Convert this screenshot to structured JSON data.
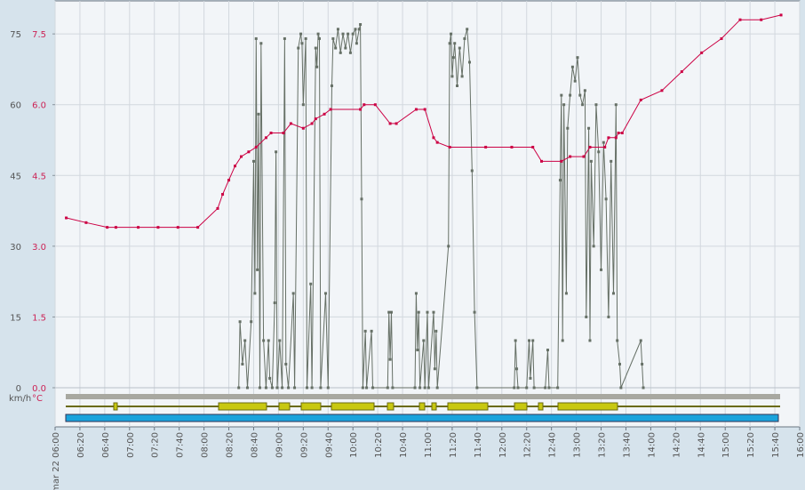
{
  "chart_data": {
    "type": "line",
    "y_label": "km/h",
    "y2_label": "°C",
    "xlim": [
      "06:00",
      "16:00"
    ],
    "xticks": [
      {
        "value": "06:00",
        "label": "mar 22 06:00"
      },
      "06:20",
      "06:40",
      "07:00",
      "07:20",
      "07:40",
      "08:00",
      "08:20",
      "08:40",
      "09:00",
      "09:20",
      "09:40",
      "10:00",
      "10:20",
      "10:40",
      "11:00",
      "11:20",
      "11:40",
      "12:00",
      "12:20",
      "12:40",
      "13:00",
      "13:20",
      "13:40",
      "14:00",
      "14:20",
      "14:40",
      "15:00",
      "15:20",
      "15:40",
      "16:00"
    ],
    "ylim": [
      0,
      82
    ],
    "yticks": [
      0,
      15,
      30,
      45,
      60,
      75
    ],
    "y2lim": [
      0,
      8.2
    ],
    "y2ticks": [
      {
        "value": 0,
        "label": "0.0"
      },
      1.5,
      {
        "value": 3,
        "label": "3.0"
      },
      4.5,
      {
        "value": 6,
        "label": "6.0"
      },
      7.5
    ],
    "grid": true,
    "series": [
      {
        "name": "km/h",
        "color": "#667066",
        "x": [
          "08:28",
          "08:29",
          "08:31",
          "08:33",
          "08:35",
          "08:38",
          "08:40",
          "08:41",
          "08:42",
          "08:43",
          "08:44",
          "08:45",
          "08:46",
          "08:48",
          "08:50",
          "08:52",
          "08:53",
          "08:55",
          "08:57",
          "08:58",
          "08:59",
          "09:01",
          "09:03",
          "09:05",
          "09:06",
          "09:08",
          "09:12",
          "09:13",
          "09:16",
          "09:18",
          "09:19",
          "09:20",
          "09:22",
          "09:23",
          "09:26",
          "09:27",
          "09:30",
          "09:31",
          "09:32",
          "09:33",
          "09:34",
          "09:38",
          "09:40",
          "09:43",
          "09:44",
          "09:46",
          "09:48",
          "09:50",
          "09:52",
          "09:54",
          "09:56",
          "09:58",
          "10:00",
          "10:02",
          "10:03",
          "10:05",
          "10:06",
          "10:07",
          "10:08",
          "10:10",
          "10:11",
          "10:15",
          "10:16",
          "10:28",
          "10:29",
          "10:30",
          "10:31",
          "10:32",
          "10:50",
          "10:51",
          "10:52",
          "10:53",
          "10:54",
          "10:57",
          "10:58",
          "11:00",
          "11:01",
          "11:05",
          "11:06",
          "11:07",
          "11:08",
          "11:17",
          "11:18",
          "11:19",
          "11:20",
          "11:21",
          "11:22",
          "11:24",
          "11:26",
          "11:28",
          "11:30",
          "11:32",
          "11:34",
          "11:36",
          "11:38",
          "11:40",
          "12:10",
          "12:11",
          "12:12",
          "12:13",
          "12:20",
          "12:22",
          "12:23",
          "12:25",
          "12:26",
          "12:35",
          "12:37",
          "12:38",
          "12:45",
          "12:47",
          "12:48",
          "12:49",
          "12:50",
          "12:52",
          "12:53",
          "12:55",
          "12:57",
          "12:59",
          "13:01",
          "13:03",
          "13:05",
          "13:07",
          "13:08",
          "13:10",
          "13:11",
          "13:12",
          "13:14",
          "13:16",
          "13:18",
          "13:20",
          "13:22",
          "13:24",
          "13:26",
          "13:28",
          "13:30",
          "13:32",
          "13:33",
          "13:35",
          "13:36",
          "13:52",
          "13:53",
          "13:54"
        ],
        "values": [
          0,
          14,
          5,
          10,
          0,
          14,
          48,
          20,
          74,
          25,
          58,
          0,
          73,
          10,
          0,
          10,
          2,
          0,
          18,
          50,
          0,
          10,
          0,
          74,
          5,
          0,
          20,
          0,
          72,
          75,
          73,
          60,
          74,
          0,
          22,
          0,
          72,
          68,
          75,
          74,
          0,
          20,
          0,
          64,
          74,
          72,
          76,
          71,
          75,
          72,
          75,
          71,
          75,
          76,
          73,
          76,
          77,
          40,
          0,
          12,
          0,
          12,
          0,
          0,
          16,
          6,
          16,
          0,
          0,
          20,
          8,
          16,
          0,
          10,
          0,
          16,
          0,
          16,
          4,
          12,
          0,
          30,
          73,
          75,
          66,
          70,
          73,
          64,
          72,
          66,
          74,
          76,
          69,
          46,
          16,
          0,
          0,
          10,
          4,
          0,
          0,
          10,
          2,
          10,
          0,
          0,
          8,
          0,
          0,
          44,
          62,
          10,
          60,
          20,
          55,
          62,
          68,
          65,
          70,
          62,
          60,
          63,
          15,
          55,
          10,
          48,
          30,
          60,
          50,
          25,
          52,
          40,
          15,
          48,
          20,
          60,
          10,
          5,
          0,
          10,
          5,
          0
        ]
      },
      {
        "name": "°C",
        "color": "#cc0044",
        "axis": "y2",
        "x": [
          "06:09",
          "06:25",
          "06:42",
          "06:49",
          "07:07",
          "07:23",
          "07:39",
          "07:55",
          "08:11",
          "08:15",
          "08:20",
          "08:25",
          "08:30",
          "08:36",
          "08:42",
          "08:50",
          "08:54",
          "09:04",
          "09:10",
          "09:20",
          "09:27",
          "09:30",
          "09:37",
          "09:42",
          "10:06",
          "10:09",
          "10:18",
          "10:30",
          "10:35",
          "10:51",
          "10:58",
          "11:05",
          "11:08",
          "11:18",
          "11:47",
          "12:08",
          "12:25",
          "12:32",
          "12:48",
          "12:55",
          "13:06",
          "13:11",
          "13:23",
          "13:26",
          "13:32",
          "13:34",
          "13:37",
          "13:52",
          "14:09",
          "14:25",
          "14:41",
          "14:57",
          "15:12",
          "15:29",
          "15:45"
        ],
        "values": [
          3.6,
          3.5,
          3.4,
          3.4,
          3.4,
          3.4,
          3.4,
          3.4,
          3.8,
          4.1,
          4.4,
          4.7,
          4.9,
          5.0,
          5.1,
          5.3,
          5.4,
          5.4,
          5.6,
          5.5,
          5.6,
          5.7,
          5.8,
          5.9,
          5.9,
          6.0,
          6.0,
          5.6,
          5.6,
          5.9,
          5.9,
          5.3,
          5.2,
          5.1,
          5.1,
          5.1,
          5.1,
          4.8,
          4.8,
          4.9,
          4.9,
          5.1,
          5.1,
          5.3,
          5.3,
          5.4,
          5.4,
          6.1,
          6.3,
          6.7,
          7.1,
          7.4,
          7.8,
          7.8,
          7.9
        ]
      }
    ]
  }
}
